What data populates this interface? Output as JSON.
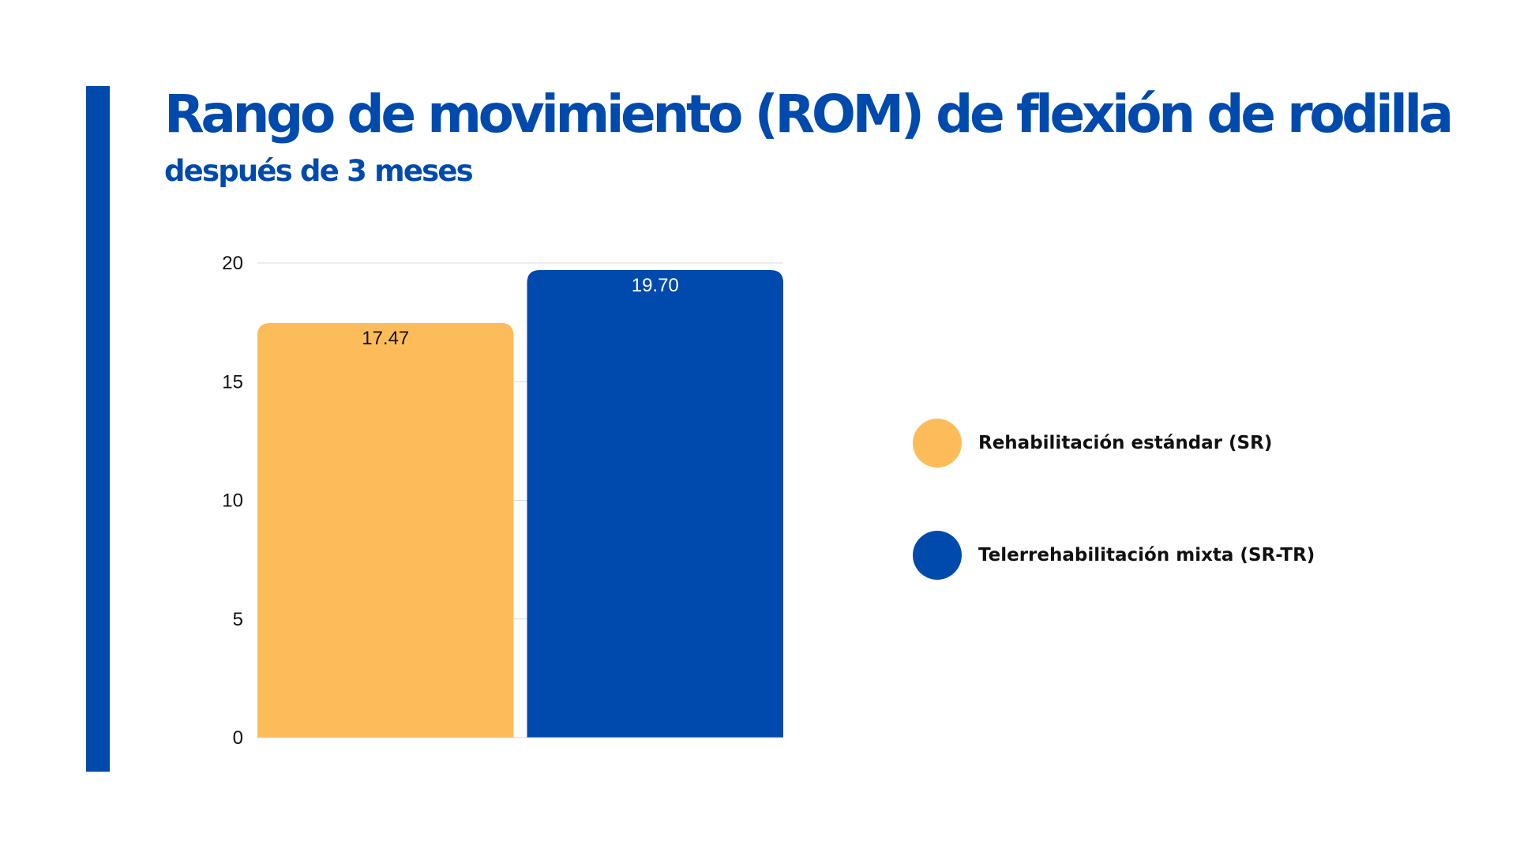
{
  "colors": {
    "accent": "#004aad",
    "series_sr": "#fdbc5a",
    "series_srtr": "#004aad",
    "grid": "#d9d9d9",
    "text": "#111111"
  },
  "header": {
    "title": "Rango de movimiento (ROM) de flexión de rodilla",
    "subtitle": "después de 3 meses"
  },
  "legend": {
    "items": [
      {
        "label": "Rehabilitación estándar (SR)",
        "color": "#fdbc5a"
      },
      {
        "label": "Telerrehabilitación mixta (SR-TR)",
        "color": "#004aad"
      }
    ]
  },
  "chart_data": {
    "type": "bar",
    "title": "Rango de movimiento (ROM) de flexión de rodilla",
    "subtitle": "después de 3 meses",
    "xlabel": "",
    "ylabel": "",
    "ylim": [
      0,
      20
    ],
    "yticks": [
      0,
      5,
      10,
      15,
      20
    ],
    "grid": true,
    "legend_position": "right",
    "series": [
      {
        "name": "Rehabilitación estándar (SR)",
        "values": [
          17.47
        ],
        "labels": [
          "17.47"
        ],
        "color": "#fdbc5a",
        "label_color": "#111111"
      },
      {
        "name": "Telerrehabilitación mixta (SR-TR)",
        "values": [
          19.7
        ],
        "labels": [
          "19.70"
        ],
        "color": "#004aad",
        "label_color": "#ffffff"
      }
    ]
  }
}
